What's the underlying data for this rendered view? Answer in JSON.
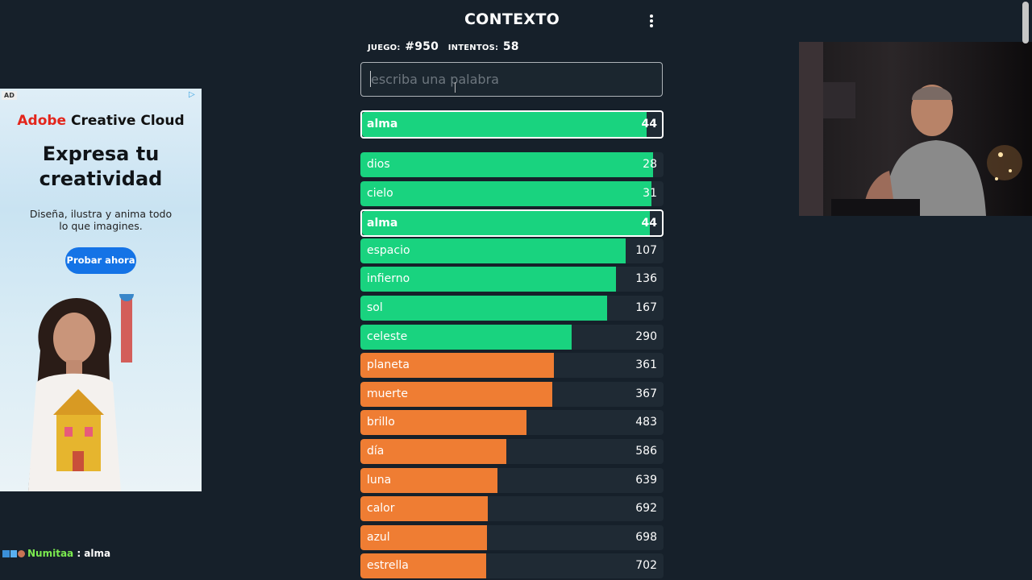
{
  "header": {
    "title": "CONTEXTO"
  },
  "info": {
    "game_label": "JUEGO:",
    "game_value": "#950",
    "tries_label": "INTENTOS:",
    "tries_value": "58"
  },
  "search": {
    "placeholder": "escriba una palabra"
  },
  "colors": {
    "green": "#19d37f",
    "orange": "#ef7d33",
    "track": "#1f2a34",
    "background": "#16202a"
  },
  "last_guess": {
    "word": "alma",
    "rank": "44",
    "fill": 0.95
  },
  "guesses": [
    {
      "word": "dios",
      "rank": "28",
      "color": "green",
      "fill": 0.965,
      "highlight": false
    },
    {
      "word": "cielo",
      "rank": "31",
      "color": "green",
      "fill": 0.96,
      "highlight": false
    },
    {
      "word": "alma",
      "rank": "44",
      "color": "green",
      "fill": 0.95,
      "highlight": true
    },
    {
      "word": "espacio",
      "rank": "107",
      "color": "green",
      "fill": 0.876,
      "highlight": false
    },
    {
      "word": "infierno",
      "rank": "136",
      "color": "green",
      "fill": 0.844,
      "highlight": false
    },
    {
      "word": "sol",
      "rank": "167",
      "color": "green",
      "fill": 0.813,
      "highlight": false
    },
    {
      "word": "celeste",
      "rank": "290",
      "color": "green",
      "fill": 0.697,
      "highlight": false
    },
    {
      "word": "planeta",
      "rank": "361",
      "color": "orange",
      "fill": 0.638,
      "highlight": false
    },
    {
      "word": "muerte",
      "rank": "367",
      "color": "orange",
      "fill": 0.633,
      "highlight": false
    },
    {
      "word": "brillo",
      "rank": "483",
      "color": "orange",
      "fill": 0.547,
      "highlight": false
    },
    {
      "word": "día",
      "rank": "586",
      "color": "orange",
      "fill": 0.481,
      "highlight": false
    },
    {
      "word": "luna",
      "rank": "639",
      "color": "orange",
      "fill": 0.451,
      "highlight": false
    },
    {
      "word": "calor",
      "rank": "692",
      "color": "orange",
      "fill": 0.421,
      "highlight": false
    },
    {
      "word": "azul",
      "rank": "698",
      "color": "orange",
      "fill": 0.418,
      "highlight": false
    },
    {
      "word": "estrella",
      "rank": "702",
      "color": "orange",
      "fill": 0.416,
      "highlight": false
    }
  ],
  "ad": {
    "badge": "AD",
    "brand_prefix": "Adobe",
    "brand_rest": " Creative Cloud",
    "headline_1": "Expresa tu",
    "headline_2": "creatividad",
    "sub_1": "Diseña, ilustra y anima todo",
    "sub_2": "lo que imagines.",
    "button": "Probar ahora"
  },
  "chat": {
    "user": "Numitaa",
    "separator": " : ",
    "message": "alma"
  }
}
